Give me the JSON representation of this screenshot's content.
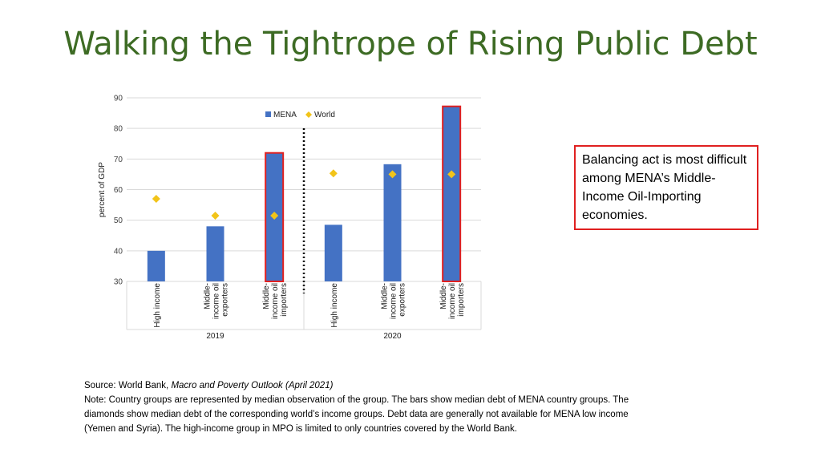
{
  "title": "Walking the Tightrope of Rising Public Debt",
  "callout_text": "Balancing act is most difficult among MENA’s Middle-Income Oil-Importing economies.",
  "source": {
    "prefix": "Source: World Bank, ",
    "italic": "Macro and Poverty Outlook (April 2021)",
    "note": "Note: Country groups are represented by median observation of the group. The bars show median debt of MENA country groups. The diamonds show median debt of the corresponding world’s income groups. Debt data are generally not available for MENA low income (Yemen and Syria). The high-income group in MPO is limited to only countries covered by the World Bank."
  },
  "colors": {
    "title": "#3d6b24",
    "bar": "#4472c4",
    "diamond": "#f2c419",
    "highlight": "#e02020"
  },
  "chart_data": {
    "type": "bar",
    "ylabel": "percent of GDP",
    "ylim": [
      30,
      90
    ],
    "yticks": [
      30,
      40,
      50,
      60,
      70,
      80,
      90
    ],
    "grid": true,
    "legend_position": "top",
    "groups": [
      "2019",
      "2020"
    ],
    "categories": [
      [
        "High income"
      ],
      [
        "Middle-",
        "income oil",
        "exporters"
      ],
      [
        "Middle-",
        "income oil",
        "importers"
      ],
      [
        "High income"
      ],
      [
        "Middle-",
        "income oil",
        "exporters"
      ],
      [
        "Middle-",
        "income oil",
        "importers"
      ]
    ],
    "category_group": [
      0,
      0,
      0,
      1,
      1,
      1
    ],
    "highlighted": [
      false,
      false,
      true,
      false,
      false,
      true
    ],
    "series": [
      {
        "name": "MENA",
        "kind": "bar",
        "values": [
          40,
          48,
          72,
          48.5,
          68.3,
          87.2
        ]
      },
      {
        "name": "World",
        "kind": "diamond",
        "values": [
          57,
          51.5,
          51.5,
          65.3,
          65,
          65
        ]
      }
    ]
  }
}
